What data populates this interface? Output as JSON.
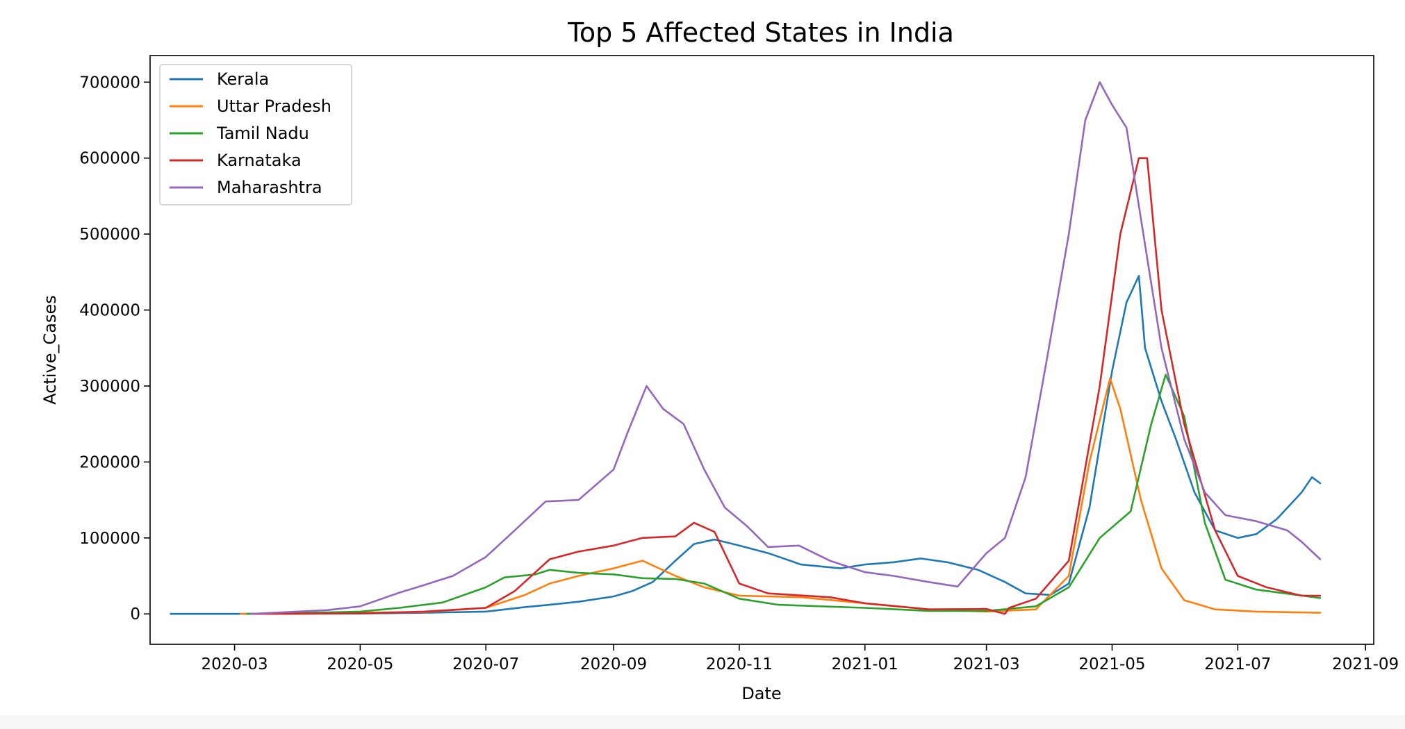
{
  "chart_data": {
    "type": "line",
    "title": "Top 5 Affected States in India",
    "xlabel": "Date",
    "ylabel": "Active_Cases",
    "grid": false,
    "legend_position": "top-left",
    "xlim": [
      "2020-01-20",
      "2021-09-05"
    ],
    "ylim": [
      -40000,
      735000
    ],
    "x_ticks": [
      "2020-03",
      "2020-05",
      "2020-07",
      "2020-09",
      "2020-11",
      "2021-01",
      "2021-03",
      "2021-05",
      "2021-07",
      "2021-09"
    ],
    "y_ticks": [
      0,
      100000,
      200000,
      300000,
      400000,
      500000,
      600000,
      700000
    ],
    "series": [
      {
        "name": "Kerala",
        "color": "#1f77b4",
        "points": [
          [
            "2020-01-30",
            0
          ],
          [
            "2020-03-01",
            0
          ],
          [
            "2020-04-01",
            200
          ],
          [
            "2020-05-01",
            500
          ],
          [
            "2020-06-01",
            1500
          ],
          [
            "2020-07-01",
            3000
          ],
          [
            "2020-07-20",
            9000
          ],
          [
            "2020-08-01",
            12000
          ],
          [
            "2020-08-15",
            16000
          ],
          [
            "2020-09-01",
            23000
          ],
          [
            "2020-09-10",
            30000
          ],
          [
            "2020-09-20",
            42000
          ],
          [
            "2020-10-01",
            70000
          ],
          [
            "2020-10-10",
            92000
          ],
          [
            "2020-10-20",
            98000
          ],
          [
            "2020-11-01",
            90000
          ],
          [
            "2020-11-15",
            80000
          ],
          [
            "2020-12-01",
            65000
          ],
          [
            "2020-12-20",
            60000
          ],
          [
            "2021-01-01",
            65000
          ],
          [
            "2021-01-15",
            68000
          ],
          [
            "2021-01-28",
            73000
          ],
          [
            "2021-02-10",
            68000
          ],
          [
            "2021-02-25",
            58000
          ],
          [
            "2021-03-10",
            42000
          ],
          [
            "2021-03-20",
            27000
          ],
          [
            "2021-04-01",
            25000
          ],
          [
            "2021-04-10",
            40000
          ],
          [
            "2021-04-20",
            140000
          ],
          [
            "2021-05-01",
            320000
          ],
          [
            "2021-05-08",
            410000
          ],
          [
            "2021-05-14",
            445000
          ],
          [
            "2021-05-17",
            350000
          ],
          [
            "2021-05-25",
            280000
          ],
          [
            "2021-06-01",
            230000
          ],
          [
            "2021-06-10",
            160000
          ],
          [
            "2021-06-20",
            110000
          ],
          [
            "2021-07-01",
            100000
          ],
          [
            "2021-07-10",
            105000
          ],
          [
            "2021-07-20",
            125000
          ],
          [
            "2021-08-01",
            160000
          ],
          [
            "2021-08-06",
            180000
          ],
          [
            "2021-08-10",
            172000
          ]
        ]
      },
      {
        "name": "Uttar Pradesh",
        "color": "#ff7f0e",
        "points": [
          [
            "2020-03-04",
            0
          ],
          [
            "2020-04-01",
            200
          ],
          [
            "2020-05-01",
            1500
          ],
          [
            "2020-06-01",
            2500
          ],
          [
            "2020-07-01",
            8000
          ],
          [
            "2020-07-20",
            25000
          ],
          [
            "2020-08-01",
            40000
          ],
          [
            "2020-08-15",
            50000
          ],
          [
            "2020-09-01",
            60000
          ],
          [
            "2020-09-15",
            70000
          ],
          [
            "2020-10-01",
            50000
          ],
          [
            "2020-10-15",
            35000
          ],
          [
            "2020-11-01",
            24000
          ],
          [
            "2020-12-01",
            22000
          ],
          [
            "2021-01-01",
            14000
          ],
          [
            "2021-02-01",
            6000
          ],
          [
            "2021-03-01",
            3000
          ],
          [
            "2021-03-25",
            6000
          ],
          [
            "2021-04-10",
            50000
          ],
          [
            "2021-04-20",
            200000
          ],
          [
            "2021-04-30",
            310000
          ],
          [
            "2021-05-05",
            270000
          ],
          [
            "2021-05-15",
            150000
          ],
          [
            "2021-05-25",
            60000
          ],
          [
            "2021-06-05",
            18000
          ],
          [
            "2021-06-20",
            6000
          ],
          [
            "2021-07-10",
            3000
          ],
          [
            "2021-08-10",
            1500
          ]
        ]
      },
      {
        "name": "Tamil Nadu",
        "color": "#2ca02c",
        "points": [
          [
            "2020-03-07",
            0
          ],
          [
            "2020-04-01",
            1000
          ],
          [
            "2020-05-01",
            3000
          ],
          [
            "2020-05-20",
            8000
          ],
          [
            "2020-06-10",
            15000
          ],
          [
            "2020-07-01",
            35000
          ],
          [
            "2020-07-10",
            48000
          ],
          [
            "2020-07-25",
            52000
          ],
          [
            "2020-08-01",
            58000
          ],
          [
            "2020-08-15",
            54000
          ],
          [
            "2020-09-01",
            52000
          ],
          [
            "2020-09-15",
            47000
          ],
          [
            "2020-10-01",
            46000
          ],
          [
            "2020-10-15",
            40000
          ],
          [
            "2020-11-01",
            20000
          ],
          [
            "2020-11-20",
            12000
          ],
          [
            "2021-01-01",
            8000
          ],
          [
            "2021-02-01",
            4000
          ],
          [
            "2021-03-01",
            4000
          ],
          [
            "2021-03-25",
            10000
          ],
          [
            "2021-04-10",
            35000
          ],
          [
            "2021-04-25",
            100000
          ],
          [
            "2021-05-10",
            135000
          ],
          [
            "2021-05-20",
            250000
          ],
          [
            "2021-05-27",
            315000
          ],
          [
            "2021-06-05",
            260000
          ],
          [
            "2021-06-15",
            120000
          ],
          [
            "2021-06-25",
            45000
          ],
          [
            "2021-07-10",
            32000
          ],
          [
            "2021-08-10",
            21000
          ]
        ]
      },
      {
        "name": "Karnataka",
        "color": "#d62728",
        "points": [
          [
            "2020-03-09",
            0
          ],
          [
            "2020-04-01",
            300
          ],
          [
            "2020-05-01",
            800
          ],
          [
            "2020-06-01",
            3000
          ],
          [
            "2020-07-01",
            8000
          ],
          [
            "2020-07-15",
            30000
          ],
          [
            "2020-08-01",
            72000
          ],
          [
            "2020-08-15",
            82000
          ],
          [
            "2020-09-01",
            90000
          ],
          [
            "2020-09-15",
            100000
          ],
          [
            "2020-10-01",
            102000
          ],
          [
            "2020-10-10",
            120000
          ],
          [
            "2020-10-20",
            108000
          ],
          [
            "2020-11-01",
            40000
          ],
          [
            "2020-11-15",
            27000
          ],
          [
            "2020-12-15",
            22000
          ],
          [
            "2021-01-01",
            14000
          ],
          [
            "2021-02-01",
            6000
          ],
          [
            "2021-03-01",
            6500
          ],
          [
            "2021-03-10",
            0
          ],
          [
            "2021-03-12",
            8000
          ],
          [
            "2021-03-25",
            20000
          ],
          [
            "2021-04-10",
            70000
          ],
          [
            "2021-04-25",
            300000
          ],
          [
            "2021-05-05",
            500000
          ],
          [
            "2021-05-14",
            600000
          ],
          [
            "2021-05-18",
            600000
          ],
          [
            "2021-05-25",
            400000
          ],
          [
            "2021-06-05",
            250000
          ],
          [
            "2021-06-20",
            110000
          ],
          [
            "2021-07-01",
            50000
          ],
          [
            "2021-07-15",
            35000
          ],
          [
            "2021-08-01",
            24000
          ],
          [
            "2021-08-10",
            24000
          ]
        ]
      },
      {
        "name": "Maharashtra",
        "color": "#9467bd",
        "points": [
          [
            "2020-03-09",
            0
          ],
          [
            "2020-04-15",
            5000
          ],
          [
            "2020-05-01",
            10000
          ],
          [
            "2020-05-20",
            28000
          ],
          [
            "2020-06-01",
            38000
          ],
          [
            "2020-06-15",
            50000
          ],
          [
            "2020-07-01",
            75000
          ],
          [
            "2020-07-15",
            110000
          ],
          [
            "2020-07-30",
            148000
          ],
          [
            "2020-08-15",
            150000
          ],
          [
            "2020-09-01",
            190000
          ],
          [
            "2020-09-08",
            240000
          ],
          [
            "2020-09-17",
            300000
          ],
          [
            "2020-09-25",
            270000
          ],
          [
            "2020-10-05",
            250000
          ],
          [
            "2020-10-15",
            190000
          ],
          [
            "2020-10-25",
            140000
          ],
          [
            "2020-11-05",
            115000
          ],
          [
            "2020-11-15",
            88000
          ],
          [
            "2020-11-30",
            90000
          ],
          [
            "2020-12-15",
            70000
          ],
          [
            "2021-01-01",
            55000
          ],
          [
            "2021-01-15",
            50000
          ],
          [
            "2021-02-01",
            42000
          ],
          [
            "2021-02-15",
            36000
          ],
          [
            "2021-03-01",
            80000
          ],
          [
            "2021-03-10",
            100000
          ],
          [
            "2021-03-20",
            180000
          ],
          [
            "2021-03-30",
            330000
          ],
          [
            "2021-04-10",
            500000
          ],
          [
            "2021-04-18",
            650000
          ],
          [
            "2021-04-25",
            700000
          ],
          [
            "2021-05-01",
            670000
          ],
          [
            "2021-05-08",
            640000
          ],
          [
            "2021-05-15",
            520000
          ],
          [
            "2021-05-25",
            350000
          ],
          [
            "2021-06-05",
            230000
          ],
          [
            "2021-06-15",
            160000
          ],
          [
            "2021-06-25",
            130000
          ],
          [
            "2021-07-10",
            122000
          ],
          [
            "2021-07-25",
            110000
          ],
          [
            "2021-08-01",
            95000
          ],
          [
            "2021-08-10",
            72000
          ]
        ]
      }
    ]
  }
}
